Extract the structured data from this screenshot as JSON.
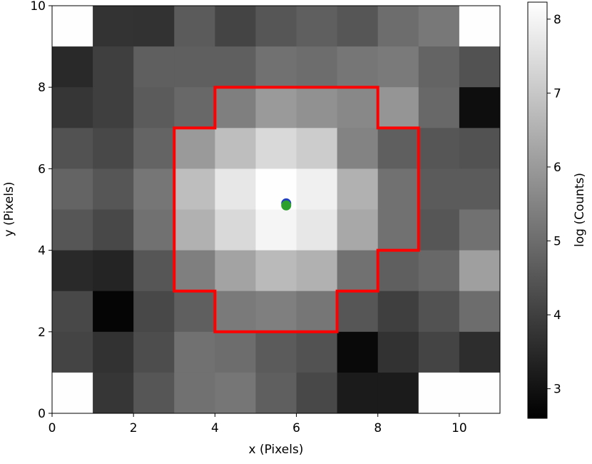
{
  "chart_data": {
    "type": "heatmap",
    "xlabel": "x (Pixels)",
    "ylabel": "y (Pixels)",
    "colorbar_label": "log (Counts)",
    "xlim": [
      0,
      11
    ],
    "ylim": [
      0,
      10
    ],
    "xticks": [
      0,
      2,
      4,
      6,
      8,
      10
    ],
    "yticks": [
      0,
      2,
      4,
      6,
      8,
      10
    ],
    "clim": [
      2.6,
      8.23
    ],
    "cticks": [
      3,
      4,
      5,
      6,
      7,
      8
    ],
    "colormap": "gray",
    "z": [
      [
        8.2,
        3.73,
        3.7,
        4.6,
        4.1,
        4.5,
        4.7,
        4.5,
        5.0,
        5.25,
        8.2
      ],
      [
        3.5,
        4.0,
        4.7,
        4.7,
        4.7,
        5.1,
        5.0,
        5.2,
        5.3,
        4.8,
        4.4
      ],
      [
        3.8,
        4.0,
        4.6,
        4.9,
        5.4,
        6.0,
        5.8,
        5.6,
        5.9,
        4.9,
        2.9
      ],
      [
        4.4,
        4.2,
        4.8,
        6.0,
        6.8,
        7.4,
        7.1,
        5.5,
        4.7,
        4.5,
        4.4
      ],
      [
        4.8,
        4.5,
        5.2,
        6.8,
        7.7,
        8.2,
        7.9,
        6.5,
        5.1,
        4.6,
        4.6
      ],
      [
        4.5,
        4.2,
        5.1,
        6.5,
        7.4,
        8.0,
        7.7,
        6.3,
        5.1,
        4.5,
        5.1
      ],
      [
        3.5,
        3.4,
        4.5,
        5.4,
        6.2,
        6.7,
        6.5,
        5.1,
        4.7,
        4.9,
        6.1
      ],
      [
        4.2,
        2.7,
        4.2,
        4.7,
        5.3,
        5.4,
        5.2,
        4.5,
        4.0,
        4.4,
        5.0
      ],
      [
        4.1,
        3.7,
        4.3,
        5.1,
        5.0,
        4.6,
        4.4,
        2.8,
        3.7,
        4.1,
        3.6
      ],
      [
        8.2,
        3.8,
        4.5,
        5.1,
        5.2,
        4.7,
        4.2,
        3.2,
        3.2,
        8.2,
        8.2
      ]
    ],
    "aperture": {
      "color": "#ff0000",
      "x": [
        4,
        8,
        8,
        9,
        9,
        8,
        8,
        7,
        7,
        4,
        4,
        3,
        3,
        4
      ],
      "y": [
        8,
        8,
        7,
        7,
        4,
        4,
        3,
        3,
        2,
        2,
        3,
        3,
        7,
        7
      ]
    },
    "points": [
      {
        "color": "#1f3fbf",
        "x": 5.75,
        "y": 5.15
      },
      {
        "color": "#2ca02c",
        "x": 5.75,
        "y": 5.1
      }
    ]
  }
}
